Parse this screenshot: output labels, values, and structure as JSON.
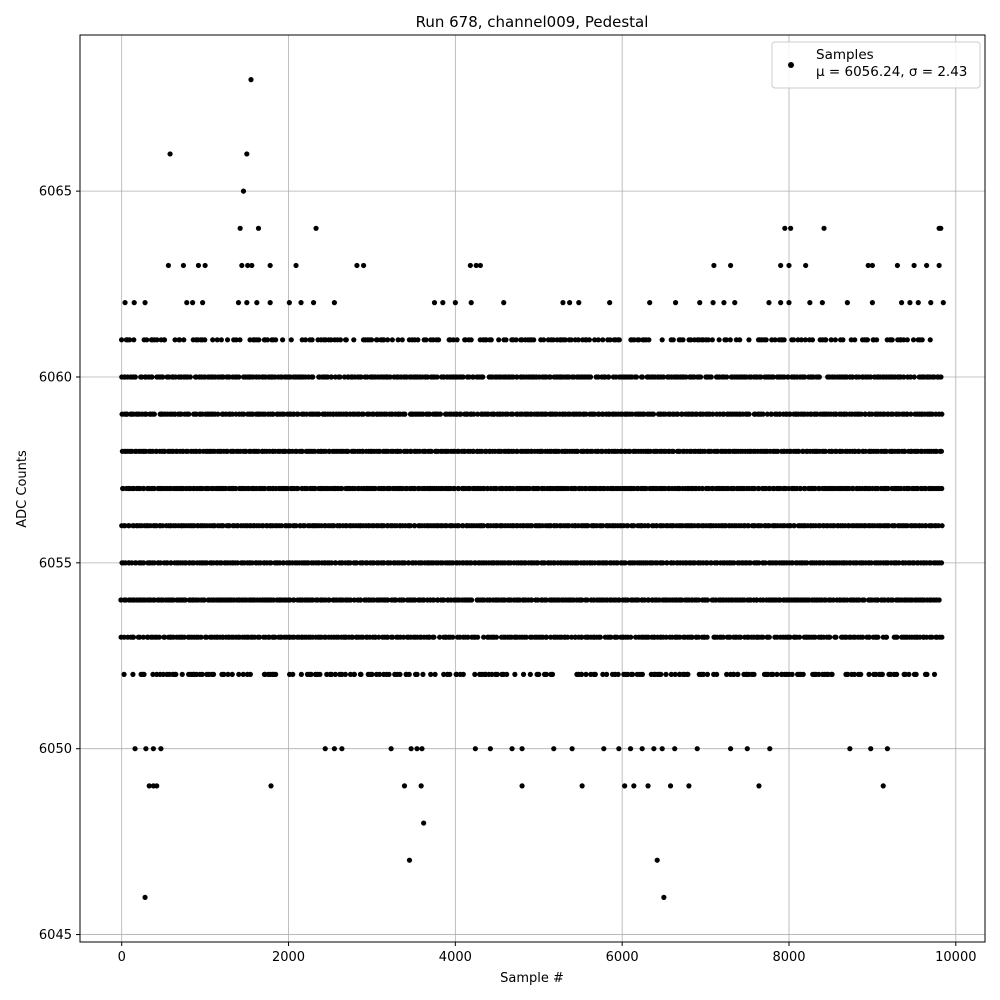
{
  "chart_data": {
    "type": "scatter",
    "title": "Run 678, channel009, Pedestal",
    "xlabel": "Sample #",
    "ylabel": "ADC Counts",
    "xlim": [
      -500,
      10350
    ],
    "ylim": [
      6044.8,
      6069.2
    ],
    "xticks": [
      0,
      2000,
      4000,
      6000,
      8000,
      10000
    ],
    "yticks": [
      6045,
      6050,
      6055,
      6060,
      6065
    ],
    "grid": true,
    "legend": {
      "placement": "top-right",
      "series_name": "Samples",
      "stats_label": "μ = 6056.24, σ = 2.43"
    },
    "series": [
      {
        "name": "Samples",
        "color": "#000000",
        "core_level_ranges": [
          {
            "y": 6052,
            "x_start": 0,
            "x_end": 9840,
            "density": 0.55
          },
          {
            "y": 6053,
            "x_start": 0,
            "x_end": 9840,
            "density": 0.9
          },
          {
            "y": 6054,
            "x_start": 0,
            "x_end": 9840,
            "density": 0.95
          },
          {
            "y": 6055,
            "x_start": 0,
            "x_end": 9840,
            "density": 1.0
          },
          {
            "y": 6056,
            "x_start": 0,
            "x_end": 9840,
            "density": 1.0
          },
          {
            "y": 6057,
            "x_start": 0,
            "x_end": 9840,
            "density": 1.0
          },
          {
            "y": 6058,
            "x_start": 0,
            "x_end": 9840,
            "density": 1.0
          },
          {
            "y": 6059,
            "x_start": 0,
            "x_end": 9840,
            "density": 0.95
          },
          {
            "y": 6060,
            "x_start": 0,
            "x_end": 9840,
            "density": 0.9
          },
          {
            "y": 6061,
            "x_start": 0,
            "x_end": 9840,
            "density": 0.55
          }
        ],
        "sparse_points": [
          [
            280,
            6046
          ],
          [
            580,
            6066
          ],
          [
            1550,
            6068
          ],
          [
            1500,
            6066
          ],
          [
            1460,
            6065
          ],
          [
            1420,
            6064
          ],
          [
            1640,
            6064
          ],
          [
            2330,
            6064
          ],
          [
            7950,
            6064
          ],
          [
            8020,
            6064
          ],
          [
            8420,
            6064
          ],
          [
            9800,
            6064
          ],
          [
            9820,
            6064
          ],
          [
            560,
            6063
          ],
          [
            740,
            6063
          ],
          [
            920,
            6063
          ],
          [
            1000,
            6063
          ],
          [
            1440,
            6063
          ],
          [
            1510,
            6063
          ],
          [
            1560,
            6063
          ],
          [
            1780,
            6063
          ],
          [
            2090,
            6063
          ],
          [
            2820,
            6063
          ],
          [
            2900,
            6063
          ],
          [
            4180,
            6063
          ],
          [
            4250,
            6063
          ],
          [
            4300,
            6063
          ],
          [
            7100,
            6063
          ],
          [
            7300,
            6063
          ],
          [
            7900,
            6063
          ],
          [
            8000,
            6063
          ],
          [
            8200,
            6063
          ],
          [
            8950,
            6063
          ],
          [
            9000,
            6063
          ],
          [
            9300,
            6063
          ],
          [
            9500,
            6063
          ],
          [
            9650,
            6063
          ],
          [
            9800,
            6063
          ],
          [
            40,
            6062
          ],
          [
            150,
            6062
          ],
          [
            280,
            6062
          ],
          [
            780,
            6062
          ],
          [
            850,
            6062
          ],
          [
            970,
            6062
          ],
          [
            1400,
            6062
          ],
          [
            1500,
            6062
          ],
          [
            1620,
            6062
          ],
          [
            1780,
            6062
          ],
          [
            2010,
            6062
          ],
          [
            2150,
            6062
          ],
          [
            2300,
            6062
          ],
          [
            2550,
            6062
          ],
          [
            3750,
            6062
          ],
          [
            3850,
            6062
          ],
          [
            4000,
            6062
          ],
          [
            4190,
            6062
          ],
          [
            4580,
            6062
          ],
          [
            5290,
            6062
          ],
          [
            5370,
            6062
          ],
          [
            5480,
            6062
          ],
          [
            5850,
            6062
          ],
          [
            6330,
            6062
          ],
          [
            6640,
            6062
          ],
          [
            6930,
            6062
          ],
          [
            7090,
            6062
          ],
          [
            7220,
            6062
          ],
          [
            7350,
            6062
          ],
          [
            7760,
            6062
          ],
          [
            7900,
            6062
          ],
          [
            8000,
            6062
          ],
          [
            8250,
            6062
          ],
          [
            8400,
            6062
          ],
          [
            8700,
            6062
          ],
          [
            9000,
            6062
          ],
          [
            9350,
            6062
          ],
          [
            9450,
            6062
          ],
          [
            9550,
            6062
          ],
          [
            9700,
            6062
          ],
          [
            9850,
            6062
          ],
          [
            3450,
            6047
          ],
          [
            6420,
            6047
          ],
          [
            3620,
            6048
          ],
          [
            6500,
            6046
          ],
          [
            330,
            6049
          ],
          [
            380,
            6049
          ],
          [
            420,
            6049
          ],
          [
            1790,
            6049
          ],
          [
            3390,
            6049
          ],
          [
            3590,
            6049
          ],
          [
            4800,
            6049
          ],
          [
            5520,
            6049
          ],
          [
            6030,
            6049
          ],
          [
            6140,
            6049
          ],
          [
            6310,
            6049
          ],
          [
            6580,
            6049
          ],
          [
            6800,
            6049
          ],
          [
            7640,
            6049
          ],
          [
            9130,
            6049
          ],
          [
            160,
            6050
          ],
          [
            290,
            6050
          ],
          [
            380,
            6050
          ],
          [
            470,
            6050
          ],
          [
            2440,
            6050
          ],
          [
            2550,
            6050
          ],
          [
            2640,
            6050
          ],
          [
            3230,
            6050
          ],
          [
            3470,
            6050
          ],
          [
            3540,
            6050
          ],
          [
            3600,
            6050
          ],
          [
            4240,
            6050
          ],
          [
            4420,
            6050
          ],
          [
            4680,
            6050
          ],
          [
            4800,
            6050
          ],
          [
            5180,
            6050
          ],
          [
            5400,
            6050
          ],
          [
            5780,
            6050
          ],
          [
            5960,
            6050
          ],
          [
            6100,
            6050
          ],
          [
            6240,
            6050
          ],
          [
            6380,
            6050
          ],
          [
            6480,
            6050
          ],
          [
            6630,
            6050
          ],
          [
            6900,
            6050
          ],
          [
            7300,
            6050
          ],
          [
            7500,
            6050
          ],
          [
            7770,
            6050
          ],
          [
            8730,
            6050
          ],
          [
            8980,
            6050
          ],
          [
            9180,
            6050
          ]
        ]
      }
    ]
  }
}
